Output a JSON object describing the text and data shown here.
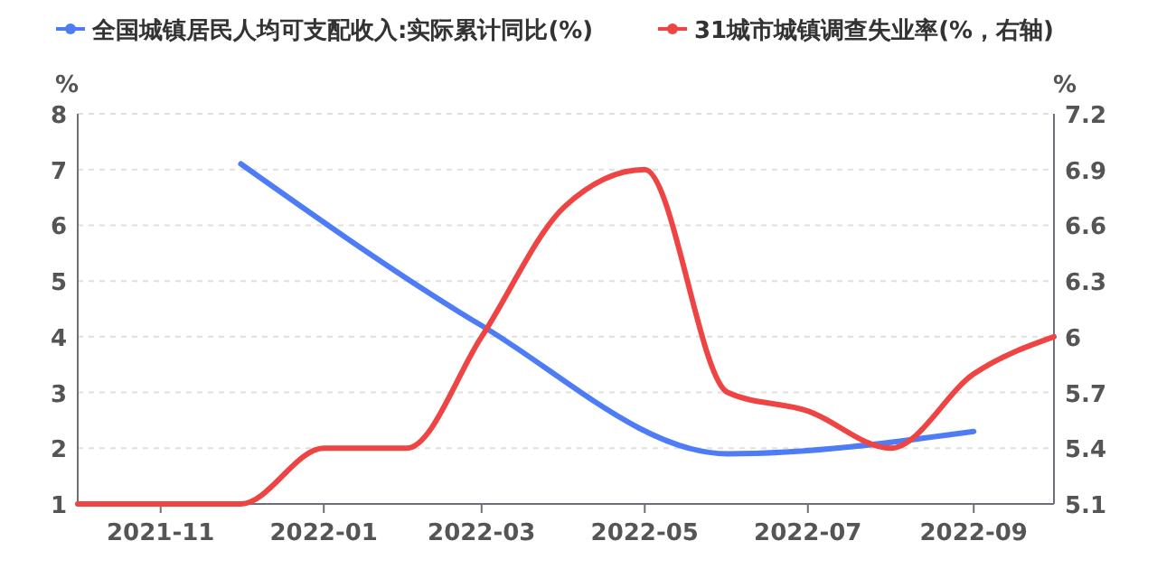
{
  "chart_data": {
    "type": "line",
    "ylabel": "%",
    "y2label": "%",
    "x": [
      "2021-10",
      "2021-11",
      "2021-12",
      "2022-01",
      "2022-02",
      "2022-03",
      "2022-04",
      "2022-05",
      "2022-06",
      "2022-07",
      "2022-08",
      "2022-09",
      "2022-10"
    ],
    "xlim": [
      "2021-10",
      "2022-10"
    ],
    "xticks": [
      {
        "value": "2021-11",
        "label": "2021-11"
      },
      {
        "value": "2022-01",
        "label": "2022-01"
      },
      {
        "value": "2022-03",
        "label": "2022-03"
      },
      {
        "value": "2022-05",
        "label": "2022-05"
      },
      {
        "value": "2022-07",
        "label": "2022-07"
      },
      {
        "value": "2022-09",
        "label": "2022-09"
      }
    ],
    "ylim": [
      1,
      8
    ],
    "yticks": [
      1,
      2,
      3,
      4,
      5,
      6,
      7,
      8
    ],
    "y2lim": [
      5.1,
      7.2
    ],
    "y2ticks": [
      5.1,
      5.4,
      5.7,
      6,
      6.3,
      6.6,
      6.9,
      7.2
    ],
    "grid": "y",
    "legend": "top",
    "line_style": "solid",
    "series": [
      {
        "name": "全国城镇居民人均可支配收入:实际累计同比(%)",
        "color": "#4e7cf7",
        "x": [
          "2021-12",
          "2022-03",
          "2022-06",
          "2022-09"
        ],
        "values": [
          7.1,
          4.2,
          1.9,
          2.3
        ]
      },
      {
        "name": "31城市城镇调查失业率(%，右轴)",
        "color": "#ee4444",
        "axis": "y2",
        "values": [
          5.1,
          5.1,
          5.1,
          5.4,
          5.4,
          6.0,
          6.7,
          6.9,
          5.7,
          5.6,
          5.4,
          5.8,
          6.0
        ]
      }
    ]
  }
}
